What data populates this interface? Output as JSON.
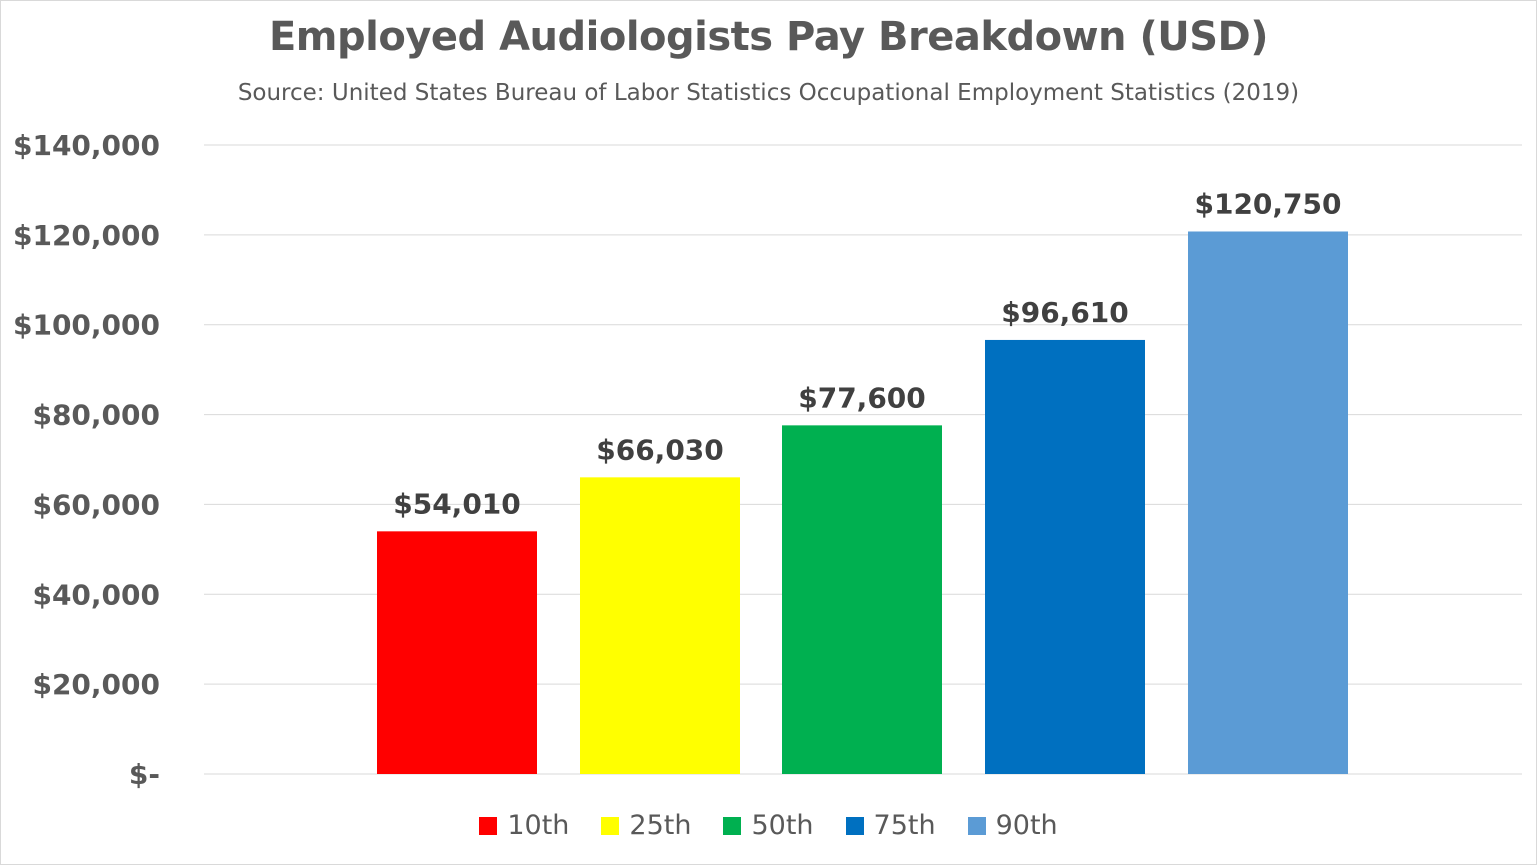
{
  "chart_data": {
    "type": "bar",
    "title": "Employed Audiologists Pay Breakdown (USD)",
    "subtitle": "Source: United States Bureau of Labor Statistics Occupational Employment Statistics (2019)",
    "categories": [
      "10th",
      "25th",
      "50th",
      "75th",
      "90th"
    ],
    "values": [
      54010,
      66030,
      77600,
      96610,
      120750
    ],
    "value_labels": [
      "$54,010",
      "$66,030",
      "$77,600",
      "$96,610",
      "$120,750"
    ],
    "colors": [
      "#ff0000",
      "#ffff00",
      "#00b050",
      "#0070c0",
      "#5b9bd5"
    ],
    "ylim": [
      0,
      140000
    ],
    "yticks": [
      0,
      20000,
      40000,
      60000,
      80000,
      100000,
      120000,
      140000
    ],
    "ytick_labels": [
      "$-",
      "$20,000",
      "$40,000",
      "$60,000",
      "$80,000",
      "$100,000",
      "$120,000",
      "$140,000"
    ],
    "grid": true,
    "legend_position": "bottom",
    "xlabel": "",
    "ylabel": ""
  }
}
